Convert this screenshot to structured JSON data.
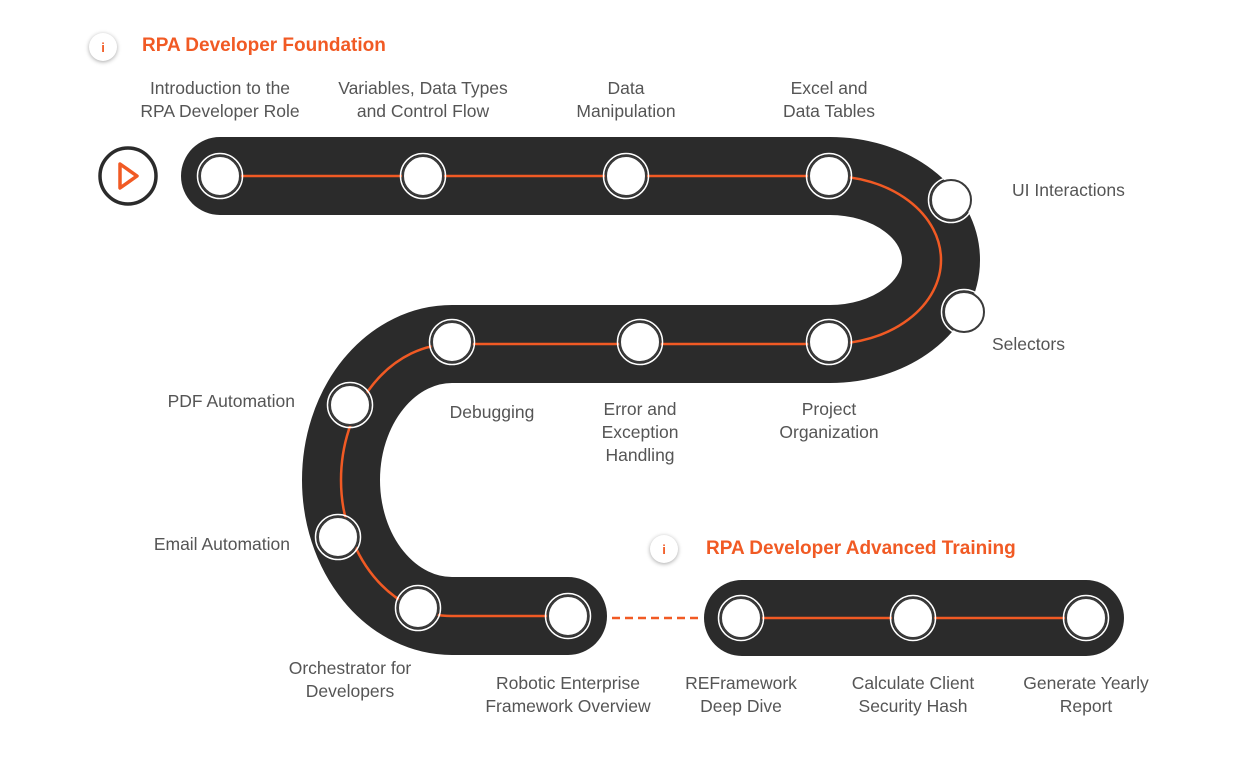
{
  "sections": {
    "foundation_title": "RPA Developer Foundation",
    "advanced_title": "RPA Developer Advanced Training",
    "info_glyph": "i"
  },
  "start_icon": "play-icon",
  "colors": {
    "track": "#2b2b2b",
    "accent": "#f15a24",
    "node": "#ffffff",
    "label": "#555555"
  },
  "modules": [
    {
      "id": "intro-rpa-developer-role",
      "lines": [
        "Introduction to the",
        "RPA Developer Role"
      ]
    },
    {
      "id": "variables-data-types",
      "lines": [
        "Variables, Data Types",
        "and Control Flow"
      ]
    },
    {
      "id": "data-manipulation",
      "lines": [
        "Data",
        "Manipulation"
      ]
    },
    {
      "id": "excel-data-tables",
      "lines": [
        "Excel and",
        "Data Tables"
      ]
    },
    {
      "id": "ui-interactions",
      "lines": [
        "UI Interactions"
      ]
    },
    {
      "id": "selectors",
      "lines": [
        "Selectors"
      ]
    },
    {
      "id": "project-organization",
      "lines": [
        "Project",
        "Organization"
      ]
    },
    {
      "id": "error-exception-handling",
      "lines": [
        "Error and",
        "Exception",
        "Handling"
      ]
    },
    {
      "id": "debugging",
      "lines": [
        "Debugging"
      ]
    },
    {
      "id": "pdf-automation",
      "lines": [
        "PDF Automation"
      ]
    },
    {
      "id": "email-automation",
      "lines": [
        "Email Automation"
      ]
    },
    {
      "id": "orchestrator-developers",
      "lines": [
        "Orchestrator for",
        "Developers"
      ]
    },
    {
      "id": "reframework-overview",
      "lines": [
        "Robotic Enterprise",
        "Framework Overview"
      ]
    },
    {
      "id": "reframework-deep-dive",
      "lines": [
        "REFramework",
        "Deep Dive"
      ]
    },
    {
      "id": "calculate-client-security-hash",
      "lines": [
        "Calculate Client",
        "Security Hash"
      ]
    },
    {
      "id": "generate-yearly-report",
      "lines": [
        "Generate Yearly",
        "Report"
      ]
    }
  ]
}
